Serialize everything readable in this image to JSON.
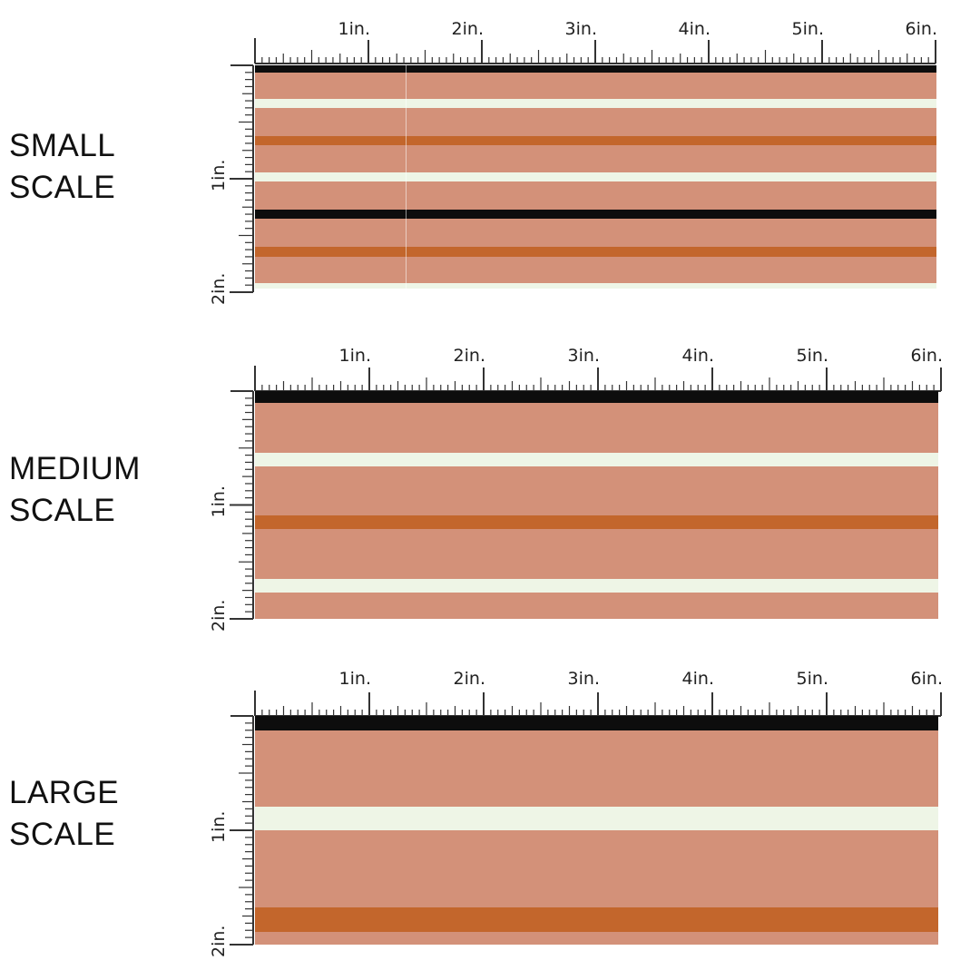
{
  "colors": {
    "background": "#d39179",
    "black": "#0d0d0d",
    "cream": "#eef5e6",
    "rust": "#c3662c",
    "ruler": "#333333"
  },
  "ruler": {
    "h_labels": [
      "1in.",
      "2in.",
      "3in.",
      "4in.",
      "5in.",
      "6in."
    ],
    "v_labels": [
      "1in.",
      "2in."
    ]
  },
  "sections": [
    {
      "id": "small",
      "label_line1": "SMALL",
      "label_line2": "SCALE",
      "stripes": [
        "black",
        "cream",
        "rust",
        "cream",
        "black",
        "rust",
        "cream"
      ]
    },
    {
      "id": "medium",
      "label_line1": "MEDIUM",
      "label_line2": "SCALE",
      "stripes": [
        "black",
        "cream",
        "rust",
        "cream"
      ]
    },
    {
      "id": "large",
      "label_line1": "LARGE",
      "label_line2": "SCALE",
      "stripes": [
        "black",
        "cream",
        "rust"
      ]
    }
  ]
}
